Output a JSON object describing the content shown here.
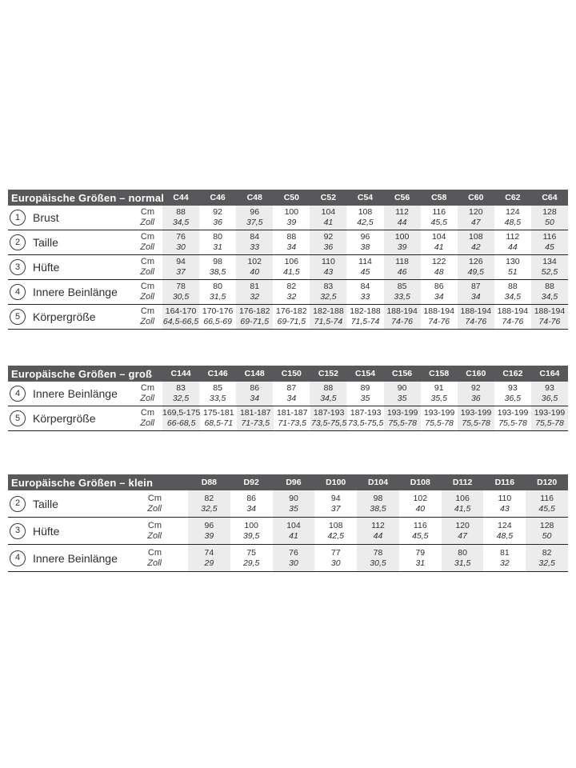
{
  "colors": {
    "header_bg": "#58585a",
    "header_text": "#ffffff",
    "column_shade": "#ececec",
    "text": "#2f2f2f",
    "row_line": "#222222"
  },
  "unit_labels": {
    "cm": "Cm",
    "zoll": "Zoll"
  },
  "tables": [
    {
      "id": "normal",
      "title": "Europäische Größen – normal",
      "columns": [
        "C44",
        "C46",
        "C48",
        "C50",
        "C52",
        "C54",
        "C56",
        "C58",
        "C60",
        "C62",
        "C64"
      ],
      "rows": [
        {
          "num": "1",
          "label": "Brust",
          "cm": [
            "88",
            "92",
            "96",
            "100",
            "104",
            "108",
            "112",
            "116",
            "120",
            "124",
            "128"
          ],
          "zoll": [
            "34,5",
            "36",
            "37,5",
            "39",
            "41",
            "42,5",
            "44",
            "45,5",
            "47",
            "48,5",
            "50"
          ]
        },
        {
          "num": "2",
          "label": "Taille",
          "cm": [
            "76",
            "80",
            "84",
            "88",
            "92",
            "96",
            "100",
            "104",
            "108",
            "112",
            "116"
          ],
          "zoll": [
            "30",
            "31",
            "33",
            "34",
            "36",
            "38",
            "39",
            "41",
            "42",
            "44",
            "45"
          ]
        },
        {
          "num": "3",
          "label": "Hüfte",
          "cm": [
            "94",
            "98",
            "102",
            "106",
            "110",
            "114",
            "118",
            "122",
            "126",
            "130",
            "134"
          ],
          "zoll": [
            "37",
            "38,5",
            "40",
            "41,5",
            "43",
            "45",
            "46",
            "48",
            "49,5",
            "51",
            "52,5"
          ]
        },
        {
          "num": "4",
          "label": "Innere Beinlänge",
          "cm": [
            "78",
            "80",
            "81",
            "82",
            "83",
            "84",
            "85",
            "86",
            "87",
            "88",
            "88"
          ],
          "zoll": [
            "30,5",
            "31,5",
            "32",
            "32",
            "32,5",
            "33",
            "33,5",
            "34",
            "34",
            "34,5",
            "34,5"
          ]
        },
        {
          "num": "5",
          "label": "Körpergröße",
          "cm": [
            "164-170",
            "170-176",
            "176-182",
            "176-182",
            "182-188",
            "182-188",
            "188-194",
            "188-194",
            "188-194",
            "188-194",
            "188-194"
          ],
          "zoll": [
            "64,5-66,5",
            "66,5-69",
            "69-71,5",
            "69-71,5",
            "71,5-74",
            "71,5-74",
            "74-76",
            "74-76",
            "74-76",
            "74-76",
            "74-76"
          ]
        }
      ]
    },
    {
      "id": "gross",
      "title": "Europäische Größen – groß",
      "columns": [
        "C144",
        "C146",
        "C148",
        "C150",
        "C152",
        "C154",
        "C156",
        "C158",
        "C160",
        "C162",
        "C164"
      ],
      "rows": [
        {
          "num": "4",
          "label": "Innere Beinlänge",
          "cm": [
            "83",
            "85",
            "86",
            "87",
            "88",
            "89",
            "90",
            "91",
            "92",
            "93",
            "93"
          ],
          "zoll": [
            "32,5",
            "33,5",
            "34",
            "34",
            "34,5",
            "35",
            "35",
            "35,5",
            "36",
            "36,5",
            "36,5"
          ]
        },
        {
          "num": "5",
          "label": "Körpergröße",
          "cm": [
            "169,5-175",
            "175-181",
            "181-187",
            "181-187",
            "187-193",
            "187-193",
            "193-199",
            "193-199",
            "193-199",
            "193-199",
            "193-199"
          ],
          "zoll": [
            "66-68,5",
            "68,5-71",
            "71-73,5",
            "71-73,5",
            "73,5-75,5",
            "73,5-75,5",
            "75,5-78",
            "75,5-78",
            "75,5-78",
            "75,5-78",
            "75,5-78"
          ]
        }
      ]
    },
    {
      "id": "klein",
      "title": "Europäische Größen – klein",
      "columns": [
        "D88",
        "D92",
        "D96",
        "D100",
        "D104",
        "D108",
        "D112",
        "D116",
        "D120"
      ],
      "rows": [
        {
          "num": "2",
          "label": "Taille",
          "cm": [
            "82",
            "86",
            "90",
            "94",
            "98",
            "102",
            "106",
            "110",
            "116"
          ],
          "zoll": [
            "32,5",
            "34",
            "35",
            "37",
            "38,5",
            "40",
            "41,5",
            "43",
            "45,5"
          ]
        },
        {
          "num": "3",
          "label": "Hüfte",
          "cm": [
            "96",
            "100",
            "104",
            "108",
            "112",
            "116",
            "120",
            "124",
            "128"
          ],
          "zoll": [
            "39",
            "39,5",
            "41",
            "42,5",
            "44",
            "45,5",
            "47",
            "48,5",
            "50"
          ]
        },
        {
          "num": "4",
          "label": "Innere Beinlänge",
          "cm": [
            "74",
            "75",
            "76",
            "77",
            "78",
            "79",
            "80",
            "81",
            "82"
          ],
          "zoll": [
            "29",
            "29,5",
            "30",
            "30",
            "30,5",
            "31",
            "31,5",
            "32",
            "32,5"
          ]
        }
      ]
    }
  ]
}
